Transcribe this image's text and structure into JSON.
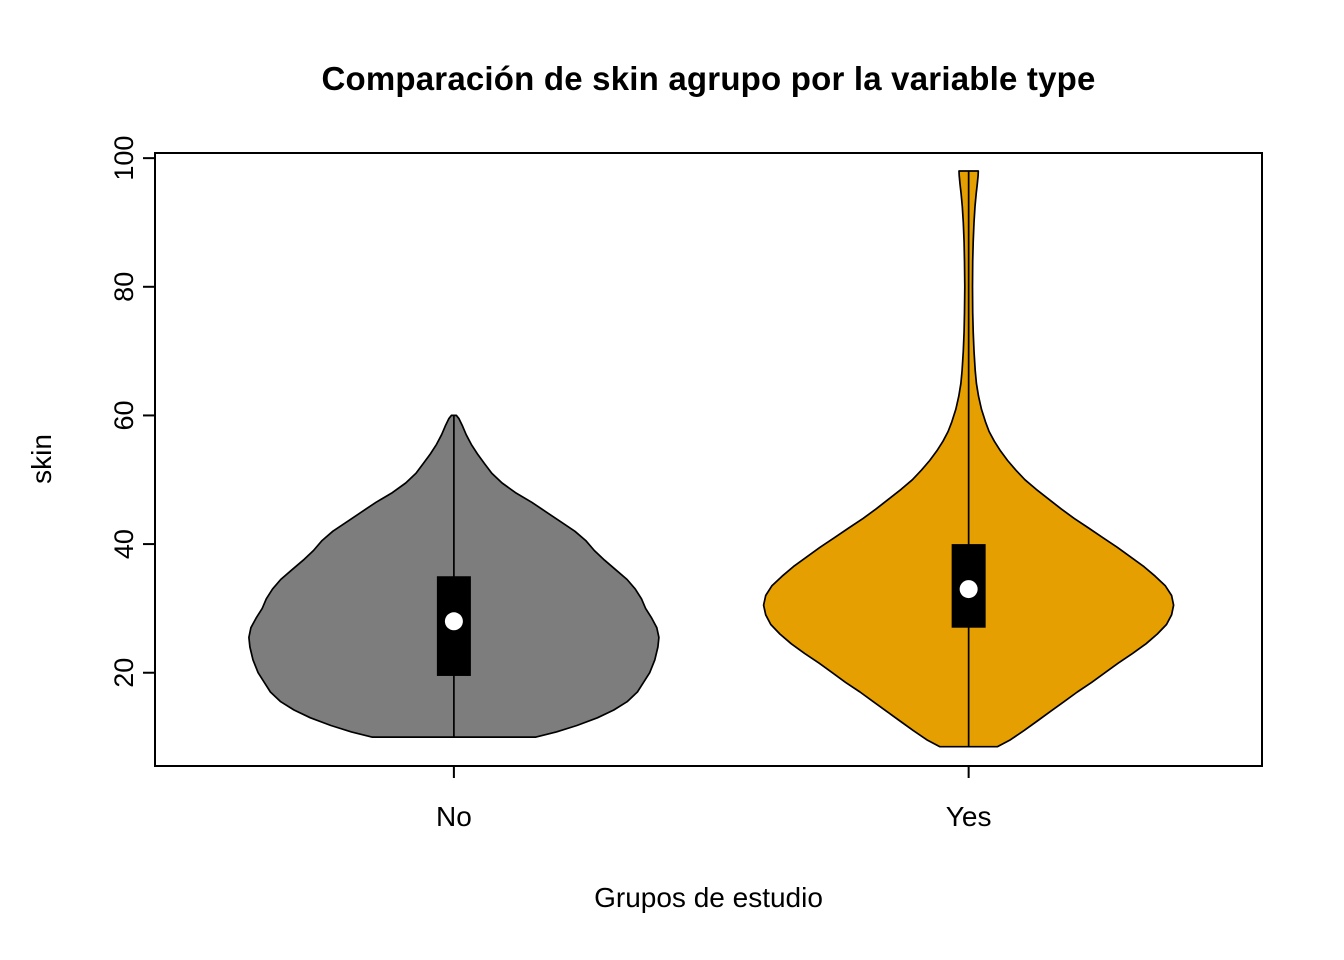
{
  "title": "Comparación de skin agrupo por la variable type",
  "xlabel": "Grupos de estudio",
  "ylabel": "skin",
  "chart_data": {
    "type": "violin",
    "title": "Comparación de skin agrupo por la variable type",
    "xlabel": "Grupos de estudio",
    "ylabel": "skin",
    "categories": [
      "No",
      "Yes"
    ],
    "y_ticks": [
      20,
      40,
      60,
      80,
      100
    ],
    "ylim": [
      5.5,
      100.8
    ],
    "grid": false,
    "legend": false,
    "colors": {
      "no_fill": "#7d7d7d",
      "yes_fill": "#E69F00",
      "outline": "#000000",
      "box": "#000000",
      "median_dot": "#ffffff",
      "background": "#ffffff"
    },
    "series": [
      {
        "name": "No",
        "color": "#7d7d7d",
        "stats": {
          "whisker_min": 10,
          "q1": 19.5,
          "median": 28,
          "q3": 35,
          "whisker_max": 60
        },
        "profile": [
          [
            10,
            0.4
          ],
          [
            10.8,
            0.5
          ],
          [
            11.8,
            0.6
          ],
          [
            13,
            0.7
          ],
          [
            14.2,
            0.78
          ],
          [
            15.5,
            0.845
          ],
          [
            17,
            0.895
          ],
          [
            18.5,
            0.925
          ],
          [
            20,
            0.955
          ],
          [
            22,
            0.98
          ],
          [
            24,
            0.995
          ],
          [
            25.5,
            1.0
          ],
          [
            27,
            0.99
          ],
          [
            28.5,
            0.965
          ],
          [
            30,
            0.935
          ],
          [
            31.5,
            0.915
          ],
          [
            33,
            0.885
          ],
          [
            34.5,
            0.845
          ],
          [
            36,
            0.79
          ],
          [
            37.5,
            0.735
          ],
          [
            39,
            0.685
          ],
          [
            40.5,
            0.645
          ],
          [
            42,
            0.59
          ],
          [
            43.5,
            0.52
          ],
          [
            45,
            0.45
          ],
          [
            46.5,
            0.38
          ],
          [
            48,
            0.3
          ],
          [
            49.5,
            0.235
          ],
          [
            51,
            0.185
          ],
          [
            52.5,
            0.15
          ],
          [
            54,
            0.115
          ],
          [
            55.5,
            0.085
          ],
          [
            57,
            0.06
          ],
          [
            58.5,
            0.04
          ],
          [
            59.5,
            0.025
          ],
          [
            60,
            0.012
          ]
        ]
      },
      {
        "name": "Yes",
        "color": "#E69F00",
        "stats": {
          "whisker_min": 8.5,
          "q1": 27,
          "median": 33,
          "q3": 40,
          "whisker_max": 98
        },
        "profile": [
          [
            8.5,
            0.14
          ],
          [
            9.5,
            0.2
          ],
          [
            11,
            0.27
          ],
          [
            12.5,
            0.335
          ],
          [
            14,
            0.4
          ],
          [
            15.5,
            0.465
          ],
          [
            17,
            0.53
          ],
          [
            18.5,
            0.6
          ],
          [
            20,
            0.665
          ],
          [
            21.5,
            0.73
          ],
          [
            23,
            0.8
          ],
          [
            24.5,
            0.865
          ],
          [
            26,
            0.92
          ],
          [
            27.5,
            0.965
          ],
          [
            29,
            0.99
          ],
          [
            30.5,
            1.0
          ],
          [
            32,
            0.99
          ],
          [
            33.5,
            0.96
          ],
          [
            35,
            0.91
          ],
          [
            36.5,
            0.855
          ],
          [
            38,
            0.79
          ],
          [
            39.5,
            0.725
          ],
          [
            41,
            0.655
          ],
          [
            42.5,
            0.585
          ],
          [
            44,
            0.515
          ],
          [
            45.5,
            0.45
          ],
          [
            47,
            0.39
          ],
          [
            48.5,
            0.33
          ],
          [
            50,
            0.275
          ],
          [
            51.5,
            0.23
          ],
          [
            53,
            0.19
          ],
          [
            54.5,
            0.155
          ],
          [
            56,
            0.125
          ],
          [
            57.5,
            0.1
          ],
          [
            59,
            0.082
          ],
          [
            61,
            0.062
          ],
          [
            63,
            0.048
          ],
          [
            65,
            0.038
          ],
          [
            67,
            0.032
          ],
          [
            70,
            0.026
          ],
          [
            73,
            0.022
          ],
          [
            76,
            0.02
          ],
          [
            80,
            0.019
          ],
          [
            84,
            0.02
          ],
          [
            87,
            0.022
          ],
          [
            90,
            0.026
          ],
          [
            92.5,
            0.031
          ],
          [
            94.5,
            0.037
          ],
          [
            96,
            0.042
          ],
          [
            97.3,
            0.046
          ],
          [
            98,
            0.047
          ]
        ]
      }
    ]
  }
}
